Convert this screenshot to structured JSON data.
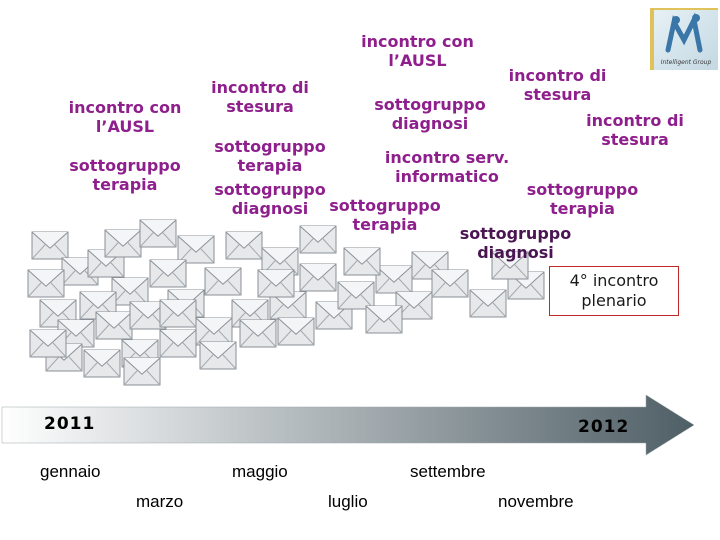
{
  "labels": {
    "l1": [
      "incontro con",
      "l’AUSL"
    ],
    "l2": [
      "sottogruppo",
      "terapia"
    ],
    "l3": [
      "incontro di",
      "stesura"
    ],
    "l4": [
      "sottogruppo",
      "terapia"
    ],
    "l5": [
      "sottogruppo",
      "diagnosi"
    ],
    "l6": [
      "incontro con",
      "l’AUSL"
    ],
    "l7": [
      "sottogruppo",
      "diagnosi"
    ],
    "l8": [
      "incontro di",
      "stesura"
    ],
    "l9": [
      "sottogruppo",
      "terapia"
    ],
    "l10": [
      "incontro serv.",
      "informatico"
    ],
    "l11": [
      "incontro di",
      "stesura"
    ],
    "l12": [
      "sottogruppo",
      "terapia"
    ],
    "l13": [
      "sottogruppo",
      "diagnosi"
    ]
  },
  "plenary": [
    "4° incontro",
    "plenario"
  ],
  "timeline": {
    "year_start": "2011",
    "year_end": "2012",
    "months_top": [
      "gennaio",
      "maggio",
      "settembre"
    ],
    "months_bottom": [
      "marzo",
      "luglio",
      "novembre"
    ],
    "arrow_color_start": "#ffffff",
    "arrow_color_end": "#4f5f66"
  },
  "logo": {
    "text": "Intelligent Group"
  },
  "colors": {
    "label": "#8e1f8c",
    "plenary_border": "#c0282a"
  }
}
